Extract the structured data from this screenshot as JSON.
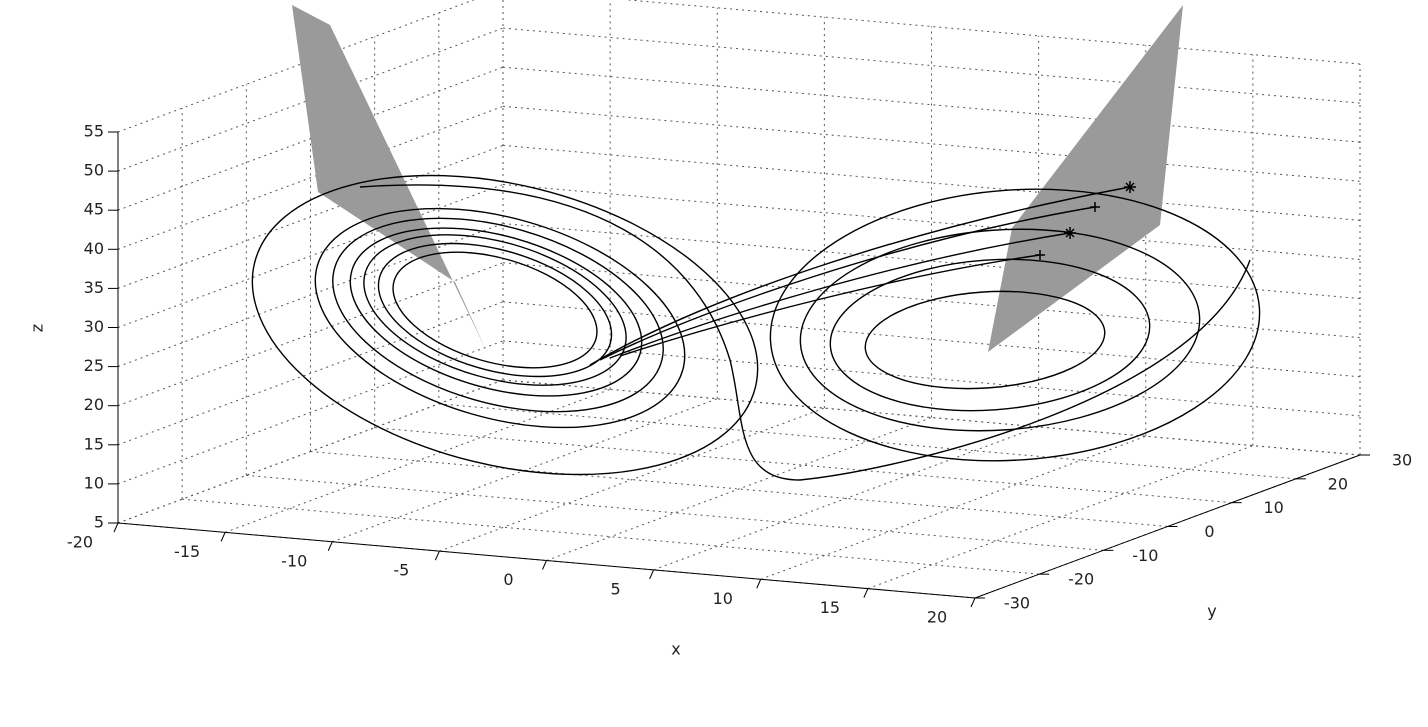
{
  "chart_data": {
    "type": "line3d",
    "xlabel": "x",
    "ylabel": "y",
    "zlabel": "z",
    "xlim": [
      -20,
      20
    ],
    "xticks": [
      -20,
      -15,
      -10,
      -5,
      0,
      5,
      10,
      15,
      20
    ],
    "ylim": [
      -30,
      30
    ],
    "yticks": [
      -30,
      -20,
      -10,
      0,
      10,
      20,
      30
    ],
    "zlim": [
      5,
      55
    ],
    "zticks": [
      5,
      10,
      15,
      20,
      25,
      30,
      35,
      40,
      45,
      50,
      55
    ],
    "grid": true,
    "color": "#000000"
  }
}
